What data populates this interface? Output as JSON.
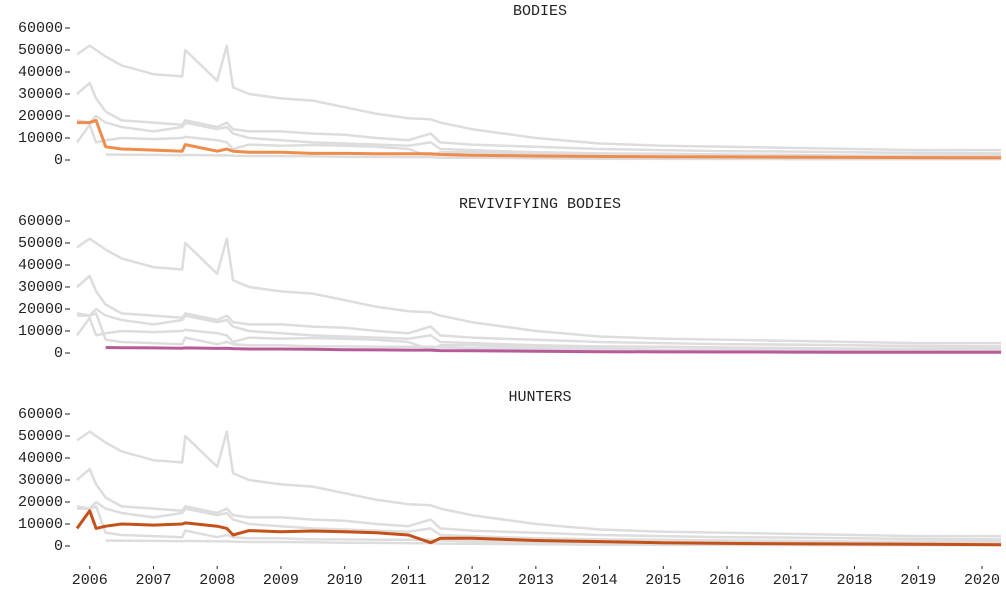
{
  "chart_data": [
    {
      "type": "line",
      "title": "BODIES",
      "x": [
        2005.8,
        2006.0,
        2006.1,
        2006.25,
        2006.5,
        2007.0,
        2007.45,
        2007.5,
        2008.0,
        2008.15,
        2008.25,
        2008.5,
        2009.0,
        2009.5,
        2010.0,
        2010.5,
        2011.0,
        2011.35,
        2011.5,
        2012.0,
        2012.5,
        2013.0,
        2014.0,
        2015.0,
        2016.0,
        2017.0,
        2018.0,
        2019.0,
        2020.3
      ],
      "xlim": [
        2005.8,
        2020.33
      ],
      "ylim": [
        0,
        60000
      ],
      "yticks": [
        0,
        10000,
        20000,
        30000,
        40000,
        50000,
        60000
      ],
      "series": [
        {
          "color": "#dddddd",
          "values": [
            48000,
            52000,
            50000,
            47000,
            43000,
            39000,
            38000,
            50000,
            36000,
            52000,
            33000,
            30000,
            28000,
            27000,
            24000,
            21000,
            19000,
            18500,
            17000,
            14000,
            12000,
            10000,
            7500,
            6500,
            6000,
            5500,
            5000,
            4500,
            4500
          ]
        },
        {
          "color": "#dddddd",
          "values": [
            30000,
            35000,
            28000,
            22000,
            18000,
            17000,
            16000,
            18000,
            15000,
            17000,
            14000,
            13000,
            13000,
            12000,
            11500,
            10000,
            9000,
            12000,
            8000,
            7000,
            6500,
            6000,
            5000,
            4500,
            4000,
            3800,
            3500,
            3200,
            3000
          ]
        },
        {
          "color": "#dddddd",
          "values": [
            18000,
            17000,
            20000,
            17000,
            15000,
            13000,
            15000,
            17000,
            14000,
            15000,
            12000,
            10000,
            9000,
            8000,
            7500,
            7000,
            6500,
            8000,
            5000,
            4500,
            4000,
            3500,
            3000,
            2800,
            2500,
            2300,
            2000,
            2000,
            2000
          ]
        },
        {
          "color": "#dddddd",
          "values": [
            null,
            null,
            null,
            2500,
            2400,
            2300,
            2200,
            2300,
            2100,
            2200,
            2000,
            1800,
            1800,
            1700,
            1500,
            1400,
            1300,
            1300,
            1100,
            1000,
            900,
            800,
            600,
            500,
            450,
            400,
            350,
            300,
            300
          ]
        },
        {
          "color": "#dddddd",
          "values": [
            8000,
            16000,
            8000,
            9000,
            10000,
            9500,
            10000,
            10500,
            9000,
            8000,
            5000,
            7000,
            6500,
            6800,
            6500,
            6000,
            5000,
            1500,
            3500,
            3500,
            3000,
            2500,
            2000,
            1500,
            1200,
            1000,
            900,
            800,
            600
          ]
        },
        {
          "color": "#ee8c4c",
          "values": [
            17000,
            17000,
            18000,
            6000,
            5000,
            4500,
            4000,
            7000,
            4000,
            5000,
            4000,
            3500,
            3500,
            3000,
            3000,
            2800,
            2800,
            2800,
            2500,
            2200,
            2000,
            1800,
            1600,
            1500,
            1400,
            1300,
            1200,
            1100,
            1000
          ]
        }
      ]
    },
    {
      "type": "line",
      "title": "REVIVIFYING BODIES",
      "x": [
        2005.8,
        2006.0,
        2006.1,
        2006.25,
        2006.5,
        2007.0,
        2007.45,
        2007.5,
        2008.0,
        2008.15,
        2008.25,
        2008.5,
        2009.0,
        2009.5,
        2010.0,
        2010.5,
        2011.0,
        2011.35,
        2011.5,
        2012.0,
        2012.5,
        2013.0,
        2014.0,
        2015.0,
        2016.0,
        2017.0,
        2018.0,
        2019.0,
        2020.3
      ],
      "xlim": [
        2005.8,
        2020.33
      ],
      "ylim": [
        0,
        60000
      ],
      "yticks": [
        0,
        10000,
        20000,
        30000,
        40000,
        50000,
        60000
      ],
      "series": [
        {
          "color": "#dddddd",
          "values": [
            48000,
            52000,
            50000,
            47000,
            43000,
            39000,
            38000,
            50000,
            36000,
            52000,
            33000,
            30000,
            28000,
            27000,
            24000,
            21000,
            19000,
            18500,
            17000,
            14000,
            12000,
            10000,
            7500,
            6500,
            6000,
            5500,
            5000,
            4500,
            4500
          ]
        },
        {
          "color": "#dddddd",
          "values": [
            30000,
            35000,
            28000,
            22000,
            18000,
            17000,
            16000,
            18000,
            15000,
            17000,
            14000,
            13000,
            13000,
            12000,
            11500,
            10000,
            9000,
            12000,
            8000,
            7000,
            6500,
            6000,
            5000,
            4500,
            4000,
            3800,
            3500,
            3200,
            3000
          ]
        },
        {
          "color": "#dddddd",
          "values": [
            18000,
            17000,
            20000,
            17000,
            15000,
            13000,
            15000,
            17000,
            14000,
            15000,
            12000,
            10000,
            9000,
            8000,
            7500,
            7000,
            6500,
            8000,
            5000,
            4500,
            4000,
            3500,
            3000,
            2800,
            2500,
            2300,
            2000,
            2000,
            2000
          ]
        },
        {
          "color": "#dddddd",
          "values": [
            17000,
            17000,
            18000,
            6000,
            5000,
            4500,
            4000,
            7000,
            4000,
            5000,
            4000,
            3500,
            3500,
            3000,
            3000,
            2800,
            2800,
            2800,
            2500,
            2200,
            2000,
            1800,
            1600,
            1500,
            1400,
            1300,
            1200,
            1100,
            1000
          ]
        },
        {
          "color": "#dddddd",
          "values": [
            8000,
            16000,
            8000,
            9000,
            10000,
            9500,
            10000,
            10500,
            9000,
            8000,
            5000,
            7000,
            6500,
            6800,
            6500,
            6000,
            5000,
            1500,
            3500,
            3500,
            3000,
            2500,
            2000,
            1500,
            1200,
            1000,
            900,
            800,
            600
          ]
        },
        {
          "color": "#b85a9a",
          "values": [
            null,
            null,
            null,
            2500,
            2400,
            2300,
            2200,
            2300,
            2100,
            2200,
            2000,
            1800,
            1800,
            1700,
            1500,
            1400,
            1300,
            1300,
            1100,
            1000,
            900,
            800,
            600,
            500,
            450,
            400,
            350,
            300,
            300
          ]
        }
      ]
    },
    {
      "type": "line",
      "title": "HUNTERS",
      "x": [
        2005.8,
        2006.0,
        2006.1,
        2006.25,
        2006.5,
        2007.0,
        2007.45,
        2007.5,
        2008.0,
        2008.15,
        2008.25,
        2008.5,
        2009.0,
        2009.5,
        2010.0,
        2010.5,
        2011.0,
        2011.35,
        2011.5,
        2012.0,
        2012.5,
        2013.0,
        2014.0,
        2015.0,
        2016.0,
        2017.0,
        2018.0,
        2019.0,
        2020.3
      ],
      "xlim": [
        2005.8,
        2020.33
      ],
      "ylim": [
        0,
        60000
      ],
      "yticks": [
        0,
        10000,
        20000,
        30000,
        40000,
        50000,
        60000
      ],
      "xticks": [
        2006,
        2007,
        2008,
        2009,
        2010,
        2011,
        2012,
        2013,
        2014,
        2015,
        2016,
        2017,
        2018,
        2019,
        2020
      ],
      "series": [
        {
          "color": "#dddddd",
          "values": [
            48000,
            52000,
            50000,
            47000,
            43000,
            39000,
            38000,
            50000,
            36000,
            52000,
            33000,
            30000,
            28000,
            27000,
            24000,
            21000,
            19000,
            18500,
            17000,
            14000,
            12000,
            10000,
            7500,
            6500,
            6000,
            5500,
            5000,
            4500,
            4500
          ]
        },
        {
          "color": "#dddddd",
          "values": [
            30000,
            35000,
            28000,
            22000,
            18000,
            17000,
            16000,
            18000,
            15000,
            17000,
            14000,
            13000,
            13000,
            12000,
            11500,
            10000,
            9000,
            12000,
            8000,
            7000,
            6500,
            6000,
            5000,
            4500,
            4000,
            3800,
            3500,
            3200,
            3000
          ]
        },
        {
          "color": "#dddddd",
          "values": [
            18000,
            17000,
            20000,
            17000,
            15000,
            13000,
            15000,
            17000,
            14000,
            15000,
            12000,
            10000,
            9000,
            8000,
            7500,
            7000,
            6500,
            8000,
            5000,
            4500,
            4000,
            3500,
            3000,
            2800,
            2500,
            2300,
            2000,
            2000,
            2000
          ]
        },
        {
          "color": "#dddddd",
          "values": [
            17000,
            17000,
            18000,
            6000,
            5000,
            4500,
            4000,
            7000,
            4000,
            5000,
            4000,
            3500,
            3500,
            3000,
            3000,
            2800,
            2800,
            2800,
            2500,
            2200,
            2000,
            1800,
            1600,
            1500,
            1400,
            1300,
            1200,
            1100,
            1000
          ]
        },
        {
          "color": "#dddddd",
          "values": [
            null,
            null,
            null,
            2500,
            2400,
            2300,
            2200,
            2300,
            2100,
            2200,
            2000,
            1800,
            1800,
            1700,
            1500,
            1400,
            1300,
            1300,
            1100,
            1000,
            900,
            800,
            600,
            500,
            450,
            400,
            350,
            300,
            300
          ]
        },
        {
          "color": "#c4501a",
          "values": [
            8000,
            16000,
            8000,
            9000,
            10000,
            9500,
            10000,
            10500,
            9000,
            8000,
            5000,
            7000,
            6500,
            6800,
            6500,
            6000,
            5000,
            1500,
            3500,
            3500,
            3000,
            2500,
            2000,
            1500,
            1200,
            1000,
            900,
            800,
            600
          ]
        }
      ]
    }
  ]
}
